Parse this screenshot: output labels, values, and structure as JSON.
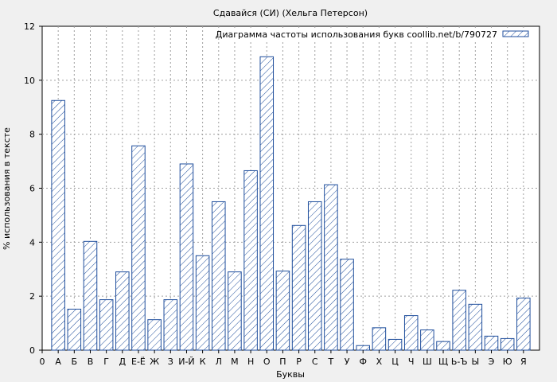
{
  "chart_data": {
    "type": "bar",
    "title": "Сдавайся (СИ) (Хельга Петерсон)",
    "xlabel": "Буквы",
    "ylabel": "% использования в тексте",
    "legend_label": "Диаграмма частоты использования букв coollib.net/b/790727",
    "legend_position": "top-right",
    "grid": true,
    "ylim": [
      0,
      12
    ],
    "yticks": [
      0,
      2,
      4,
      6,
      8,
      10,
      12
    ],
    "categories": [
      "0",
      "А",
      "Б",
      "В",
      "Г",
      "Д",
      "Е-Ё",
      "Ж",
      "З",
      "И-Й",
      "К",
      "Л",
      "М",
      "Н",
      "О",
      "П",
      "Р",
      "С",
      "Т",
      "У",
      "Ф",
      "Х",
      "Ц",
      "Ч",
      "Ш",
      "Щ",
      "Ь-Ъ",
      "Ы",
      "Э",
      "Ю",
      "Я"
    ],
    "values": [
      0,
      9.25,
      1.52,
      4.03,
      1.87,
      2.9,
      7.57,
      1.13,
      1.87,
      6.9,
      3.5,
      5.5,
      2.9,
      6.65,
      10.87,
      2.93,
      4.62,
      5.5,
      6.13,
      3.37,
      0.17,
      0.83,
      0.4,
      1.28,
      0.75,
      0.32,
      2.22,
      1.7,
      0.52,
      0.43,
      1.93
    ],
    "colors": {
      "bar_stroke": "#1f4e9c",
      "hatch": "#1f4e9c",
      "bar_fill": "#ffffff",
      "plot_bg": "#ffffff",
      "grid": "#a0a0a0",
      "page_bg": "#f0f0f0"
    }
  }
}
